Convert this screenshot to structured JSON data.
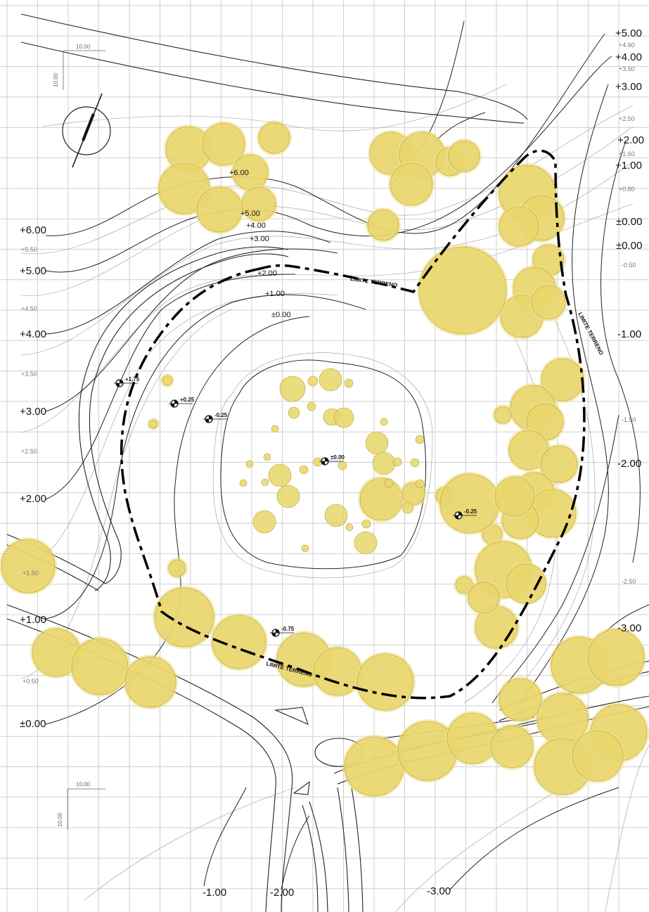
{
  "elevation_labels_right": [
    "+5.00",
    "+4.60",
    "+4.00",
    "+3.50",
    "+3.00",
    "+2.50",
    "+2.00",
    "+1.60",
    "+1.00",
    "+0.80",
    "±0.00",
    "±0.00",
    "-0.50",
    "-1.00",
    "-1.50",
    "-2.00",
    "-2.50",
    "-3.00"
  ],
  "elevation_labels_left": [
    "+6.00",
    "+5.50",
    "+5.00",
    "+4.50",
    "+4.00",
    "+3.50",
    "+3.00",
    "+2.50",
    "+2.00",
    "+1.50",
    "+1.00",
    "+0.50",
    "±0.00"
  ],
  "elevation_labels_bottom": [
    "-1.00",
    "-2.00",
    "-3.00"
  ],
  "inner_contour_labels": [
    "+6.00",
    "+5.00",
    "+4.00",
    "+3.00",
    "+2.00",
    "+1.00",
    "±0.00"
  ],
  "spot_levels": [
    "+1.75",
    "+0.25",
    "-0.25",
    "±0.00",
    "-0.25",
    "-0.75"
  ],
  "boundary_label": "LIMITE TERRENO",
  "grid_dimension": "10.00",
  "colors": {
    "tree": "#e8d66a",
    "boundary": "#000000",
    "grid": "#cfcfcf"
  },
  "icons": [
    "north-arrow-icon",
    "spot-level-marker-icon"
  ]
}
